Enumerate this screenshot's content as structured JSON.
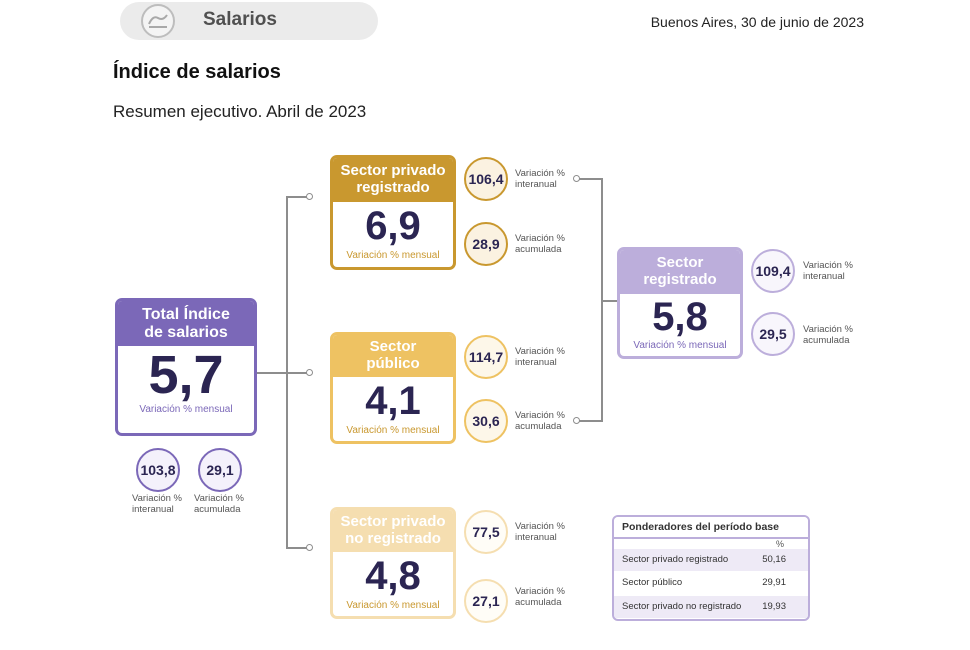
{
  "header": {
    "section": "Salarios",
    "date": "Buenos Aires, 30 de junio de 2023",
    "title": "Índice de salarios",
    "subtitle": "Resumen ejecutivo. Abril de 2023"
  },
  "total": {
    "title_line1": "Total Índice",
    "title_line2": "de salarios",
    "value": "5,7",
    "caption": "Variación % mensual",
    "interanual": "103,8",
    "acumulada": "29,1",
    "interanual_label1": "Variación %",
    "interanual_label2": "interanual",
    "acumulada_label1": "Variación %",
    "acumulada_label2": "acumulada"
  },
  "privado_registrado": {
    "title_line1": "Sector privado",
    "title_line2": "registrado",
    "value": "6,9",
    "caption": "Variación % mensual",
    "interanual": "106,4",
    "acumulada": "28,9"
  },
  "publico": {
    "title_line1": "Sector",
    "title_line2": "público",
    "value": "4,1",
    "caption": "Variación % mensual",
    "interanual": "114,7",
    "acumulada": "30,6"
  },
  "privado_no_registrado": {
    "title_line1": "Sector privado",
    "title_line2": "no registrado",
    "value": "4,8",
    "caption": "Variación % mensual",
    "interanual": "77,5",
    "acumulada": "27,1"
  },
  "registrado": {
    "title_line1": "Sector",
    "title_line2": "registrado",
    "value": "5,8",
    "caption": "Variación % mensual",
    "interanual": "109,4",
    "acumulada": "29,5"
  },
  "labels": {
    "var": "Variación %",
    "interanual": "interanual",
    "acumulada": "acumulada"
  },
  "ponderadores": {
    "title": "Ponderadores del período base",
    "unit": "%",
    "rows": [
      {
        "label": "Sector privado registrado",
        "value": "50,16"
      },
      {
        "label": "Sector público",
        "value": "29,91"
      },
      {
        "label": "Sector privado no registrado",
        "value": "19,93"
      }
    ]
  },
  "colors": {
    "total": "#7b68b8",
    "privado_registrado": "#c9982f",
    "publico": "#eec262",
    "privado_no_registrado": "#f5deb0",
    "registrado": "#bcaedb"
  },
  "icons": {
    "section_logo": "indec-logo-icon"
  }
}
